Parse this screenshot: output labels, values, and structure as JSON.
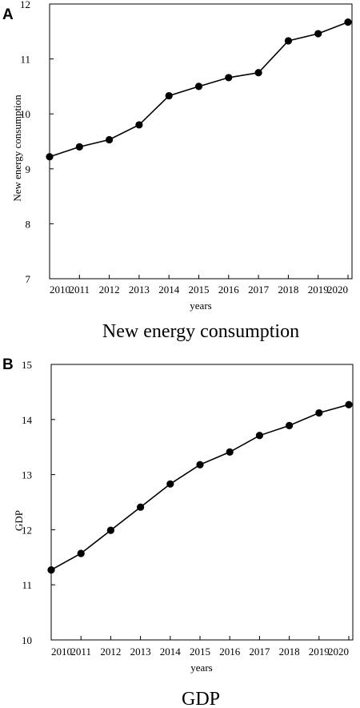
{
  "chart_data": [
    {
      "type": "line",
      "panel_label": "A",
      "caption": "New energy consumption",
      "xlabel": "years",
      "ylabel": "New energy consumption",
      "categories": [
        "2010",
        "2011",
        "2012",
        "2013",
        "2014",
        "2015",
        "2016",
        "2017",
        "2018",
        "2019",
        "2020"
      ],
      "values": [
        9.22,
        9.4,
        9.53,
        9.8,
        10.33,
        10.5,
        10.66,
        10.75,
        11.33,
        11.46,
        11.67
      ],
      "ylim": [
        7,
        12
      ],
      "yticks": [
        "7",
        "8",
        "9",
        "10",
        "11",
        "12"
      ],
      "grid": false,
      "line_color": "#000000",
      "marker_color": "#000000"
    },
    {
      "type": "line",
      "panel_label": "B",
      "caption": "GDP",
      "xlabel": "years",
      "ylabel": "GDP",
      "categories": [
        "2010",
        "2011",
        "2012",
        "2013",
        "2014",
        "2015",
        "2016",
        "2017",
        "2018",
        "2019",
        "2020"
      ],
      "values": [
        11.27,
        11.57,
        11.99,
        12.41,
        12.83,
        13.18,
        13.41,
        13.71,
        13.89,
        14.12,
        14.27
      ],
      "ylim": [
        10,
        15
      ],
      "yticks": [
        "10",
        "11",
        "12",
        "13",
        "14",
        "15"
      ],
      "grid": false,
      "line_color": "#000000",
      "marker_color": "#000000"
    }
  ]
}
